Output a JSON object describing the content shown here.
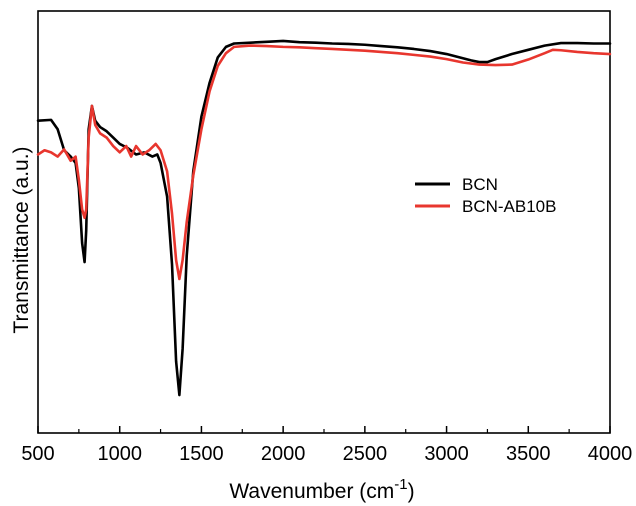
{
  "chart_data": {
    "type": "line",
    "xlabel": "Wavenumber (cm",
    "xlabel_sup": "-1",
    "xlabel_close": ")",
    "ylabel": "Transmittance (a.u.)",
    "xlim": [
      500,
      4000
    ],
    "ylim": [
      0,
      100
    ],
    "x_ticks": [
      500,
      1000,
      1500,
      2000,
      2500,
      3000,
      3500,
      4000
    ],
    "y_ticks_labeled": false,
    "grid": false,
    "legend_position": "right-center",
    "series": [
      {
        "name": "BCN",
        "color": "#000000",
        "points": [
          [
            500,
            74.0
          ],
          [
            580,
            74.2
          ],
          [
            620,
            72.0
          ],
          [
            660,
            67.0
          ],
          [
            700,
            65.5
          ],
          [
            730,
            64.0
          ],
          [
            750,
            58.0
          ],
          [
            770,
            45.0
          ],
          [
            785,
            40.5
          ],
          [
            795,
            48.0
          ],
          [
            810,
            72.0
          ],
          [
            830,
            77.5
          ],
          [
            850,
            74.0
          ],
          [
            880,
            72.5
          ],
          [
            920,
            71.5
          ],
          [
            960,
            70.0
          ],
          [
            1000,
            68.5
          ],
          [
            1050,
            67.5
          ],
          [
            1100,
            66.0
          ],
          [
            1150,
            66.5
          ],
          [
            1200,
            65.5
          ],
          [
            1230,
            66.0
          ],
          [
            1250,
            64.0
          ],
          [
            1290,
            56.0
          ],
          [
            1320,
            40.0
          ],
          [
            1345,
            17.0
          ],
          [
            1365,
            9.0
          ],
          [
            1385,
            20.0
          ],
          [
            1410,
            42.0
          ],
          [
            1450,
            62.0
          ],
          [
            1500,
            75.0
          ],
          [
            1550,
            83.0
          ],
          [
            1600,
            89.0
          ],
          [
            1650,
            91.5
          ],
          [
            1700,
            92.3
          ],
          [
            1800,
            92.5
          ],
          [
            1900,
            92.7
          ],
          [
            2000,
            92.9
          ],
          [
            2100,
            92.6
          ],
          [
            2200,
            92.5
          ],
          [
            2300,
            92.3
          ],
          [
            2400,
            92.2
          ],
          [
            2500,
            92.0
          ],
          [
            2600,
            91.7
          ],
          [
            2700,
            91.4
          ],
          [
            2800,
            91.0
          ],
          [
            2900,
            90.5
          ],
          [
            3000,
            89.8
          ],
          [
            3100,
            88.8
          ],
          [
            3150,
            88.3
          ],
          [
            3200,
            87.9
          ],
          [
            3250,
            87.9
          ],
          [
            3300,
            88.6
          ],
          [
            3400,
            89.8
          ],
          [
            3500,
            90.8
          ],
          [
            3600,
            91.8
          ],
          [
            3700,
            92.4
          ],
          [
            3800,
            92.4
          ],
          [
            3900,
            92.3
          ],
          [
            4000,
            92.3
          ]
        ]
      },
      {
        "name": "BCN-AB10B",
        "color": "#e8362e",
        "points": [
          [
            500,
            66.0
          ],
          [
            540,
            67.0
          ],
          [
            580,
            66.5
          ],
          [
            620,
            65.5
          ],
          [
            660,
            67.2
          ],
          [
            700,
            64.5
          ],
          [
            730,
            65.5
          ],
          [
            750,
            60.0
          ],
          [
            770,
            53.0
          ],
          [
            785,
            51.0
          ],
          [
            795,
            53.0
          ],
          [
            810,
            70.0
          ],
          [
            830,
            77.5
          ],
          [
            850,
            73.0
          ],
          [
            880,
            71.0
          ],
          [
            920,
            70.0
          ],
          [
            960,
            68.0
          ],
          [
            1000,
            66.5
          ],
          [
            1040,
            68.0
          ],
          [
            1070,
            65.5
          ],
          [
            1100,
            68.0
          ],
          [
            1140,
            66.0
          ],
          [
            1180,
            67.0
          ],
          [
            1220,
            68.5
          ],
          [
            1250,
            67.0
          ],
          [
            1290,
            62.0
          ],
          [
            1320,
            52.0
          ],
          [
            1345,
            41.0
          ],
          [
            1365,
            36.5
          ],
          [
            1385,
            41.0
          ],
          [
            1410,
            50.0
          ],
          [
            1450,
            61.0
          ],
          [
            1500,
            72.0
          ],
          [
            1550,
            81.0
          ],
          [
            1600,
            87.0
          ],
          [
            1650,
            90.0
          ],
          [
            1700,
            91.5
          ],
          [
            1800,
            91.8
          ],
          [
            1900,
            91.7
          ],
          [
            2000,
            91.5
          ],
          [
            2100,
            91.4
          ],
          [
            2200,
            91.2
          ],
          [
            2300,
            91.0
          ],
          [
            2400,
            90.8
          ],
          [
            2500,
            90.6
          ],
          [
            2600,
            90.3
          ],
          [
            2700,
            90.0
          ],
          [
            2800,
            89.6
          ],
          [
            2900,
            89.2
          ],
          [
            3000,
            88.6
          ],
          [
            3100,
            87.8
          ],
          [
            3200,
            87.3
          ],
          [
            3300,
            87.2
          ],
          [
            3400,
            87.3
          ],
          [
            3500,
            88.5
          ],
          [
            3600,
            90.0
          ],
          [
            3650,
            90.8
          ],
          [
            3700,
            90.7
          ],
          [
            3800,
            90.3
          ],
          [
            3900,
            90.0
          ],
          [
            4000,
            89.8
          ]
        ]
      }
    ]
  }
}
